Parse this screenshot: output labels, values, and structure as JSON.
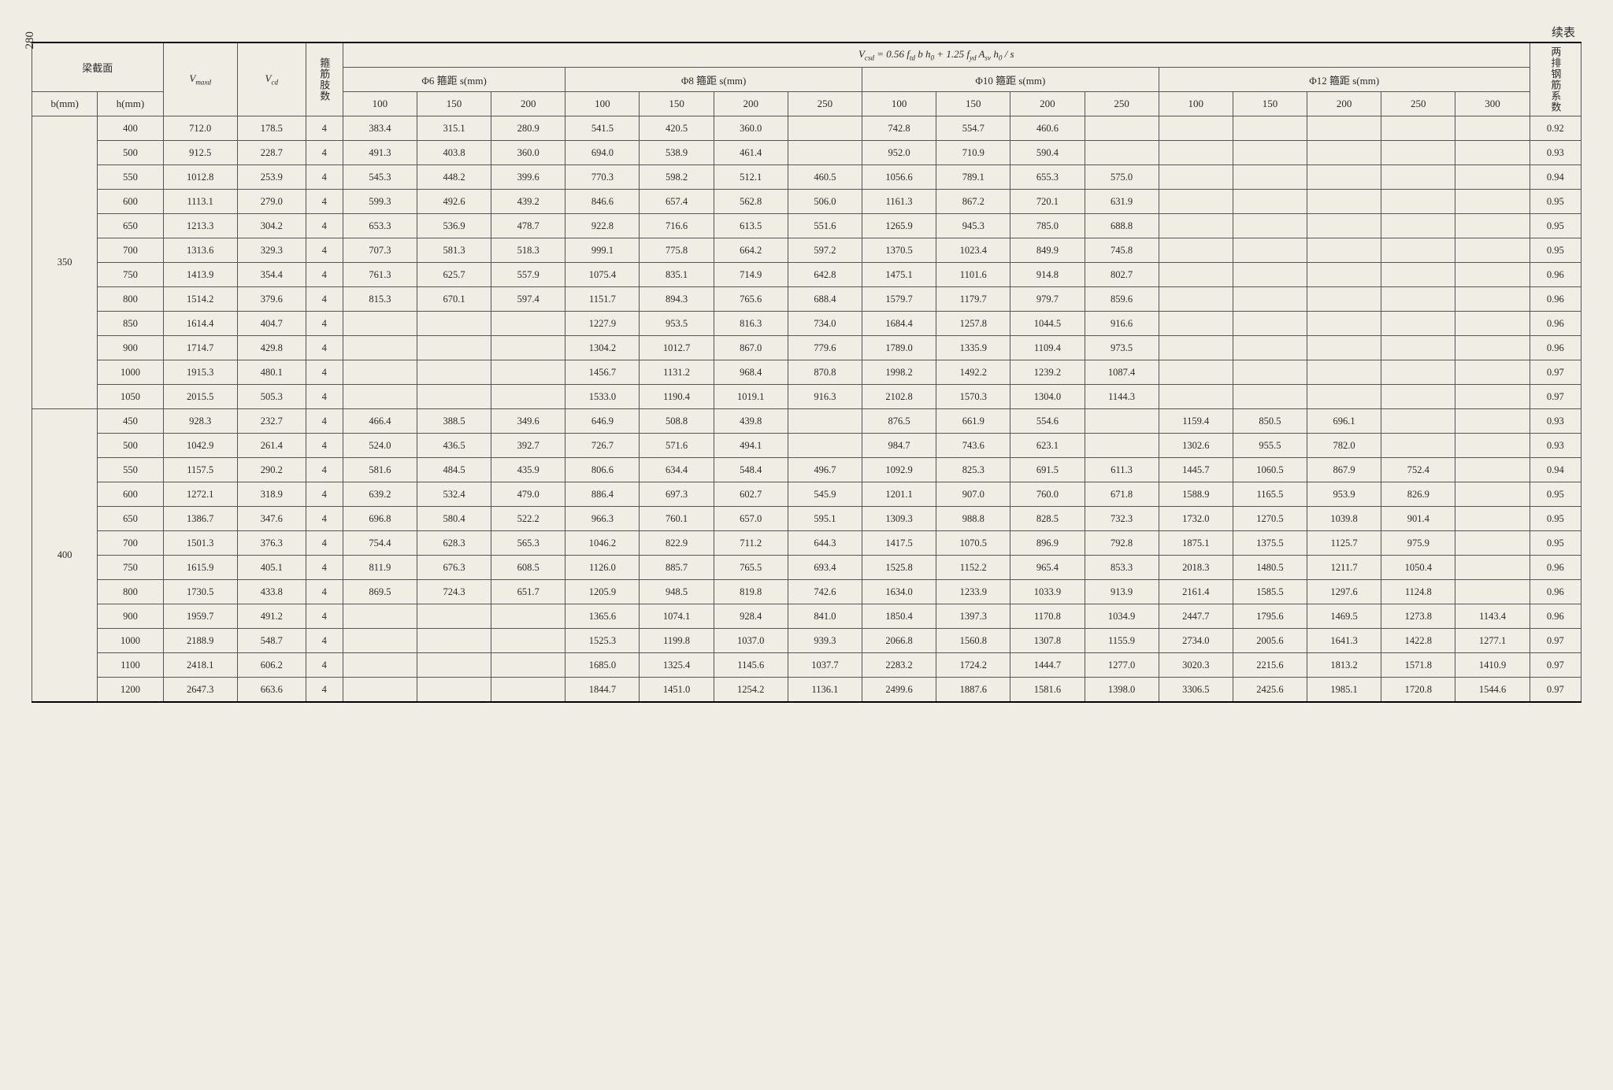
{
  "page_number": "280",
  "continuation_label": "续表",
  "headers": {
    "beam_section": "梁截面",
    "b_mm": "b(mm)",
    "h_mm": "h(mm)",
    "V_maxd": "V",
    "V_maxd_sub": "maxd",
    "V_cd": "V",
    "V_cd_sub": "cd",
    "stirrup_legs": "箍筋肢数",
    "formula_html": "V<sub>csd</sub> = 0.56 f<sub>td</sub> b h<sub>0</sub> + 1.25 f<sub>yd</sub> A<sub>sv</sub> h<sub>0</sub> / s",
    "two_row_coef": "两排钢筋系数",
    "groups": [
      {
        "label": "Φ6 箍距 s(mm)",
        "sub": [
          "100",
          "150",
          "200"
        ]
      },
      {
        "label": "Φ8 箍距 s(mm)",
        "sub": [
          "100",
          "150",
          "200",
          "250"
        ]
      },
      {
        "label": "Φ10 箍距 s(mm)",
        "sub": [
          "100",
          "150",
          "200",
          "250"
        ]
      },
      {
        "label": "Φ12 箍距 s(mm)",
        "sub": [
          "100",
          "150",
          "200",
          "250",
          "300"
        ]
      }
    ]
  },
  "blocks": [
    {
      "b": "350",
      "rows": [
        {
          "h": "400",
          "vm": "712.0",
          "vc": "178.5",
          "n": "4",
          "d6": [
            "383.4",
            "315.1",
            "280.9"
          ],
          "d8": [
            "541.5",
            "420.5",
            "360.0",
            ""
          ],
          "d10": [
            "742.8",
            "554.7",
            "460.6",
            ""
          ],
          "d12": [
            "",
            "",
            "",
            "",
            ""
          ],
          "coef": "0.92"
        },
        {
          "h": "500",
          "vm": "912.5",
          "vc": "228.7",
          "n": "4",
          "d6": [
            "491.3",
            "403.8",
            "360.0"
          ],
          "d8": [
            "694.0",
            "538.9",
            "461.4",
            ""
          ],
          "d10": [
            "952.0",
            "710.9",
            "590.4",
            ""
          ],
          "d12": [
            "",
            "",
            "",
            "",
            ""
          ],
          "coef": "0.93"
        },
        {
          "h": "550",
          "vm": "1012.8",
          "vc": "253.9",
          "n": "4",
          "d6": [
            "545.3",
            "448.2",
            "399.6"
          ],
          "d8": [
            "770.3",
            "598.2",
            "512.1",
            "460.5"
          ],
          "d10": [
            "1056.6",
            "789.1",
            "655.3",
            "575.0"
          ],
          "d12": [
            "",
            "",
            "",
            "",
            ""
          ],
          "coef": "0.94"
        },
        {
          "h": "600",
          "vm": "1113.1",
          "vc": "279.0",
          "n": "4",
          "d6": [
            "599.3",
            "492.6",
            "439.2"
          ],
          "d8": [
            "846.6",
            "657.4",
            "562.8",
            "506.0"
          ],
          "d10": [
            "1161.3",
            "867.2",
            "720.1",
            "631.9"
          ],
          "d12": [
            "",
            "",
            "",
            "",
            ""
          ],
          "coef": "0.95"
        },
        {
          "h": "650",
          "vm": "1213.3",
          "vc": "304.2",
          "n": "4",
          "d6": [
            "653.3",
            "536.9",
            "478.7"
          ],
          "d8": [
            "922.8",
            "716.6",
            "613.5",
            "551.6"
          ],
          "d10": [
            "1265.9",
            "945.3",
            "785.0",
            "688.8"
          ],
          "d12": [
            "",
            "",
            "",
            "",
            ""
          ],
          "coef": "0.95"
        },
        {
          "h": "700",
          "vm": "1313.6",
          "vc": "329.3",
          "n": "4",
          "d6": [
            "707.3",
            "581.3",
            "518.3"
          ],
          "d8": [
            "999.1",
            "775.8",
            "664.2",
            "597.2"
          ],
          "d10": [
            "1370.5",
            "1023.4",
            "849.9",
            "745.8"
          ],
          "d12": [
            "",
            "",
            "",
            "",
            ""
          ],
          "coef": "0.95"
        },
        {
          "h": "750",
          "vm": "1413.9",
          "vc": "354.4",
          "n": "4",
          "d6": [
            "761.3",
            "625.7",
            "557.9"
          ],
          "d8": [
            "1075.4",
            "835.1",
            "714.9",
            "642.8"
          ],
          "d10": [
            "1475.1",
            "1101.6",
            "914.8",
            "802.7"
          ],
          "d12": [
            "",
            "",
            "",
            "",
            ""
          ],
          "coef": "0.96"
        },
        {
          "h": "800",
          "vm": "1514.2",
          "vc": "379.6",
          "n": "4",
          "d6": [
            "815.3",
            "670.1",
            "597.4"
          ],
          "d8": [
            "1151.7",
            "894.3",
            "765.6",
            "688.4"
          ],
          "d10": [
            "1579.7",
            "1179.7",
            "979.7",
            "859.6"
          ],
          "d12": [
            "",
            "",
            "",
            "",
            ""
          ],
          "coef": "0.96"
        },
        {
          "h": "850",
          "vm": "1614.4",
          "vc": "404.7",
          "n": "4",
          "d6": [
            "",
            "",
            ""
          ],
          "d8": [
            "1227.9",
            "953.5",
            "816.3",
            "734.0"
          ],
          "d10": [
            "1684.4",
            "1257.8",
            "1044.5",
            "916.6"
          ],
          "d12": [
            "",
            "",
            "",
            "",
            ""
          ],
          "coef": "0.96"
        },
        {
          "h": "900",
          "vm": "1714.7",
          "vc": "429.8",
          "n": "4",
          "d6": [
            "",
            "",
            ""
          ],
          "d8": [
            "1304.2",
            "1012.7",
            "867.0",
            "779.6"
          ],
          "d10": [
            "1789.0",
            "1335.9",
            "1109.4",
            "973.5"
          ],
          "d12": [
            "",
            "",
            "",
            "",
            ""
          ],
          "coef": "0.96"
        },
        {
          "h": "1000",
          "vm": "1915.3",
          "vc": "480.1",
          "n": "4",
          "d6": [
            "",
            "",
            ""
          ],
          "d8": [
            "1456.7",
            "1131.2",
            "968.4",
            "870.8"
          ],
          "d10": [
            "1998.2",
            "1492.2",
            "1239.2",
            "1087.4"
          ],
          "d12": [
            "",
            "",
            "",
            "",
            ""
          ],
          "coef": "0.97"
        },
        {
          "h": "1050",
          "vm": "2015.5",
          "vc": "505.3",
          "n": "4",
          "d6": [
            "",
            "",
            ""
          ],
          "d8": [
            "1533.0",
            "1190.4",
            "1019.1",
            "916.3"
          ],
          "d10": [
            "2102.8",
            "1570.3",
            "1304.0",
            "1144.3"
          ],
          "d12": [
            "",
            "",
            "",
            "",
            ""
          ],
          "coef": "0.97"
        }
      ]
    },
    {
      "b": "400",
      "rows": [
        {
          "h": "450",
          "vm": "928.3",
          "vc": "232.7",
          "n": "4",
          "d6": [
            "466.4",
            "388.5",
            "349.6"
          ],
          "d8": [
            "646.9",
            "508.8",
            "439.8",
            ""
          ],
          "d10": [
            "876.5",
            "661.9",
            "554.6",
            ""
          ],
          "d12": [
            "1159.4",
            "850.5",
            "696.1",
            "",
            ""
          ],
          "coef": "0.93"
        },
        {
          "h": "500",
          "vm": "1042.9",
          "vc": "261.4",
          "n": "4",
          "d6": [
            "524.0",
            "436.5",
            "392.7"
          ],
          "d8": [
            "726.7",
            "571.6",
            "494.1",
            ""
          ],
          "d10": [
            "984.7",
            "743.6",
            "623.1",
            ""
          ],
          "d12": [
            "1302.6",
            "955.5",
            "782.0",
            "",
            ""
          ],
          "coef": "0.93"
        },
        {
          "h": "550",
          "vm": "1157.5",
          "vc": "290.2",
          "n": "4",
          "d6": [
            "581.6",
            "484.5",
            "435.9"
          ],
          "d8": [
            "806.6",
            "634.4",
            "548.4",
            "496.7"
          ],
          "d10": [
            "1092.9",
            "825.3",
            "691.5",
            "611.3"
          ],
          "d12": [
            "1445.7",
            "1060.5",
            "867.9",
            "752.4",
            ""
          ],
          "coef": "0.94"
        },
        {
          "h": "600",
          "vm": "1272.1",
          "vc": "318.9",
          "n": "4",
          "d6": [
            "639.2",
            "532.4",
            "479.0"
          ],
          "d8": [
            "886.4",
            "697.3",
            "602.7",
            "545.9"
          ],
          "d10": [
            "1201.1",
            "907.0",
            "760.0",
            "671.8"
          ],
          "d12": [
            "1588.9",
            "1165.5",
            "953.9",
            "826.9",
            ""
          ],
          "coef": "0.95"
        },
        {
          "h": "650",
          "vm": "1386.7",
          "vc": "347.6",
          "n": "4",
          "d6": [
            "696.8",
            "580.4",
            "522.2"
          ],
          "d8": [
            "966.3",
            "760.1",
            "657.0",
            "595.1"
          ],
          "d10": [
            "1309.3",
            "988.8",
            "828.5",
            "732.3"
          ],
          "d12": [
            "1732.0",
            "1270.5",
            "1039.8",
            "901.4",
            ""
          ],
          "coef": "0.95"
        },
        {
          "h": "700",
          "vm": "1501.3",
          "vc": "376.3",
          "n": "4",
          "d6": [
            "754.4",
            "628.3",
            "565.3"
          ],
          "d8": [
            "1046.2",
            "822.9",
            "711.2",
            "644.3"
          ],
          "d10": [
            "1417.5",
            "1070.5",
            "896.9",
            "792.8"
          ],
          "d12": [
            "1875.1",
            "1375.5",
            "1125.7",
            "975.9",
            ""
          ],
          "coef": "0.95"
        },
        {
          "h": "750",
          "vm": "1615.9",
          "vc": "405.1",
          "n": "4",
          "d6": [
            "811.9",
            "676.3",
            "608.5"
          ],
          "d8": [
            "1126.0",
            "885.7",
            "765.5",
            "693.4"
          ],
          "d10": [
            "1525.8",
            "1152.2",
            "965.4",
            "853.3"
          ],
          "d12": [
            "2018.3",
            "1480.5",
            "1211.7",
            "1050.4",
            ""
          ],
          "coef": "0.96"
        },
        {
          "h": "800",
          "vm": "1730.5",
          "vc": "433.8",
          "n": "4",
          "d6": [
            "869.5",
            "724.3",
            "651.7"
          ],
          "d8": [
            "1205.9",
            "948.5",
            "819.8",
            "742.6"
          ],
          "d10": [
            "1634.0",
            "1233.9",
            "1033.9",
            "913.9"
          ],
          "d12": [
            "2161.4",
            "1585.5",
            "1297.6",
            "1124.8",
            ""
          ],
          "coef": "0.96"
        },
        {
          "h": "900",
          "vm": "1959.7",
          "vc": "491.2",
          "n": "4",
          "d6": [
            "",
            "",
            ""
          ],
          "d8": [
            "1365.6",
            "1074.1",
            "928.4",
            "841.0"
          ],
          "d10": [
            "1850.4",
            "1397.3",
            "1170.8",
            "1034.9"
          ],
          "d12": [
            "2447.7",
            "1795.6",
            "1469.5",
            "1273.8",
            "1143.4"
          ],
          "coef": "0.96"
        },
        {
          "h": "1000",
          "vm": "2188.9",
          "vc": "548.7",
          "n": "4",
          "d6": [
            "",
            "",
            ""
          ],
          "d8": [
            "1525.3",
            "1199.8",
            "1037.0",
            "939.3"
          ],
          "d10": [
            "2066.8",
            "1560.8",
            "1307.8",
            "1155.9"
          ],
          "d12": [
            "2734.0",
            "2005.6",
            "1641.3",
            "1422.8",
            "1277.1"
          ],
          "coef": "0.97"
        },
        {
          "h": "1100",
          "vm": "2418.1",
          "vc": "606.2",
          "n": "4",
          "d6": [
            "",
            "",
            ""
          ],
          "d8": [
            "1685.0",
            "1325.4",
            "1145.6",
            "1037.7"
          ],
          "d10": [
            "2283.2",
            "1724.2",
            "1444.7",
            "1277.0"
          ],
          "d12": [
            "3020.3",
            "2215.6",
            "1813.2",
            "1571.8",
            "1410.9"
          ],
          "coef": "0.97"
        },
        {
          "h": "1200",
          "vm": "2647.3",
          "vc": "663.6",
          "n": "4",
          "d6": [
            "",
            "",
            ""
          ],
          "d8": [
            "1844.7",
            "1451.0",
            "1254.2",
            "1136.1"
          ],
          "d10": [
            "2499.6",
            "1887.6",
            "1581.6",
            "1398.0"
          ],
          "d12": [
            "3306.5",
            "2425.6",
            "1985.1",
            "1720.8",
            "1544.6"
          ],
          "coef": "0.97"
        }
      ]
    }
  ]
}
